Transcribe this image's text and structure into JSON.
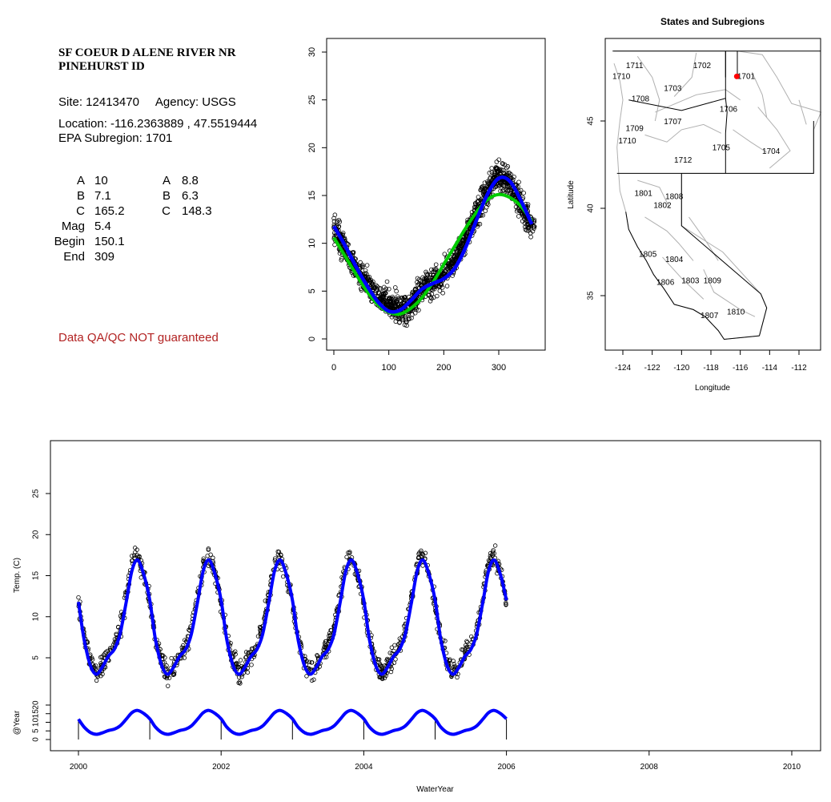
{
  "station": {
    "name_line1": "SF COEUR D ALENE RIVER NR",
    "name_line2": "PINEHURST ID",
    "site_line": "Site: 12413470     Agency: USGS",
    "location_line": "Location: -116.2363889 , 47.5519444",
    "subregion_line": "EPA Subregion: 1701",
    "qa_note": "Data QA/QC NOT guaranteed"
  },
  "params_left": [
    {
      "label": "A",
      "value": "10"
    },
    {
      "label": "B",
      "value": "7.1"
    },
    {
      "label": "C",
      "value": "165.2"
    },
    {
      "label": "Mag",
      "value": "5.4"
    },
    {
      "label": "Begin",
      "value": "150.1"
    },
    {
      "label": "End",
      "value": "309"
    }
  ],
  "params_right": [
    {
      "label": "A",
      "value": "8.8"
    },
    {
      "label": "B",
      "value": "6.3"
    },
    {
      "label": "C",
      "value": "148.3"
    }
  ],
  "chart_data": [
    {
      "type": "scatter",
      "title": "",
      "xlabel": "",
      "ylabel": "",
      "xlim": [
        0,
        365
      ],
      "ylim": [
        0,
        30
      ],
      "x_ticks": [
        0,
        100,
        200,
        300
      ],
      "y_ticks": [
        0,
        5,
        10,
        15,
        20,
        25,
        30
      ],
      "series": [
        {
          "kind": "points",
          "color": "#000000",
          "x": [
            0,
            15,
            30,
            45,
            60,
            75,
            90,
            105,
            120,
            135,
            150,
            165,
            180,
            195,
            210,
            225,
            240,
            255,
            270,
            285,
            300,
            315,
            330,
            345,
            360
          ],
          "y": [
            11.5,
            10,
            8.5,
            7,
            5.8,
            4.8,
            4,
            3.5,
            3,
            3.3,
            4.2,
            5.5,
            6,
            6.5,
            7.5,
            8.8,
            10.5,
            12.5,
            14.5,
            16.3,
            17,
            16.5,
            15.3,
            13.5,
            11.5
          ]
        },
        {
          "kind": "line",
          "color": "#0000ff",
          "x": [
            0,
            20,
            40,
            60,
            80,
            100,
            120,
            140,
            160,
            180,
            200,
            220,
            240,
            260,
            280,
            300,
            320,
            340,
            360
          ],
          "y": [
            11.8,
            9.8,
            7.6,
            5.6,
            3.9,
            2.9,
            3.0,
            4.0,
            5.2,
            5.8,
            6.3,
            7.4,
            9.6,
            12.5,
            15.2,
            16.8,
            16.5,
            14.5,
            12.0
          ]
        },
        {
          "kind": "line",
          "color": "#00cc00",
          "x": [
            0,
            20,
            40,
            60,
            80,
            100,
            120,
            140,
            160,
            180,
            200,
            220,
            240,
            260,
            280,
            300,
            320,
            340,
            360
          ],
          "y": [
            10.6,
            8.7,
            6.8,
            5.0,
            3.6,
            2.8,
            2.6,
            3.2,
            4.3,
            5.9,
            7.8,
            9.7,
            11.6,
            13.3,
            14.6,
            15.1,
            14.8,
            13.9,
            12.3
          ]
        }
      ]
    },
    {
      "type": "map",
      "title": "States and Subregions",
      "xlabel": "Longitude",
      "ylabel": "Latitude",
      "xlim": [
        -125.5,
        -110.5
      ],
      "ylim": [
        32,
        49.5
      ],
      "x_ticks": [
        -124,
        -122,
        -120,
        -118,
        -116,
        -114,
        -112
      ],
      "y_ticks": [
        35,
        40,
        45
      ],
      "site_marker": {
        "lon": -116.2363889,
        "lat": 47.5519444,
        "color": "#ff0000"
      },
      "subregions": [
        {
          "code": "1711",
          "lon": -123.2,
          "lat": 48.2
        },
        {
          "code": "1702",
          "lon": -118.6,
          "lat": 48.2
        },
        {
          "code": "1710",
          "lon": -124.1,
          "lat": 47.6
        },
        {
          "code": "1701",
          "lon": -115.6,
          "lat": 47.6
        },
        {
          "code": "1703",
          "lon": -120.6,
          "lat": 46.9
        },
        {
          "code": "1708",
          "lon": -122.8,
          "lat": 46.3
        },
        {
          "code": "1706",
          "lon": -116.8,
          "lat": 45.7
        },
        {
          "code": "1707",
          "lon": -120.6,
          "lat": 45.0
        },
        {
          "code": "1709",
          "lon": -123.2,
          "lat": 44.6
        },
        {
          "code": "1710",
          "lon": -123.7,
          "lat": 43.9
        },
        {
          "code": "1705",
          "lon": -117.3,
          "lat": 43.5
        },
        {
          "code": "1704",
          "lon": -113.9,
          "lat": 43.3
        },
        {
          "code": "1712",
          "lon": -119.9,
          "lat": 42.8
        },
        {
          "code": "1801",
          "lon": -122.6,
          "lat": 40.9
        },
        {
          "code": "1808",
          "lon": -120.5,
          "lat": 40.7
        },
        {
          "code": "1802",
          "lon": -121.3,
          "lat": 40.2
        },
        {
          "code": "1805",
          "lon": -122.3,
          "lat": 37.4
        },
        {
          "code": "1804",
          "lon": -120.5,
          "lat": 37.1
        },
        {
          "code": "1809",
          "lon": -117.9,
          "lat": 35.9
        },
        {
          "code": "1806",
          "lon": -121.1,
          "lat": 35.8
        },
        {
          "code": "1803",
          "lon": -119.4,
          "lat": 35.9
        },
        {
          "code": "1810",
          "lon": -116.3,
          "lat": 34.1
        },
        {
          "code": "1807",
          "lon": -118.1,
          "lat": 33.9
        }
      ]
    },
    {
      "type": "scatter",
      "title": "",
      "xlabel": "WaterYear",
      "ylabel": "Temp. (C)",
      "ylabel_lower": "@Year",
      "xlim": [
        1999.6,
        2010.4
      ],
      "ylim": [
        0,
        30
      ],
      "x_ticks": [
        2000,
        2002,
        2004,
        2006,
        2008,
        2010
      ],
      "y_ticks": [
        5,
        10,
        15,
        20,
        25
      ],
      "lower_ylim": [
        0,
        20
      ],
      "lower_y_ticks": [
        0,
        5,
        10,
        15,
        20
      ],
      "year_markers": [
        2000,
        2001,
        2002,
        2003,
        2004,
        2005,
        2006
      ],
      "series": [
        {
          "kind": "points",
          "color": "#000000",
          "cycle_years": [
            2000,
            2001,
            2002,
            2003,
            2004,
            2005
          ],
          "cycle_x": [
            0.0,
            0.08,
            0.17,
            0.25,
            0.33,
            0.42,
            0.5,
            0.58,
            0.67,
            0.75,
            0.83,
            0.92,
            1.0
          ],
          "cycle_y": [
            11.5,
            7.5,
            4.5,
            3.2,
            3.8,
            5.5,
            6.5,
            8.5,
            12.5,
            16.5,
            17.5,
            15.0,
            12.0
          ]
        },
        {
          "kind": "line",
          "color": "#0000ff",
          "cycle_x": [
            0.0,
            0.08,
            0.17,
            0.25,
            0.33,
            0.42,
            0.5,
            0.58,
            0.67,
            0.75,
            0.83,
            0.92,
            1.0
          ],
          "cycle_y": [
            11.8,
            7.2,
            4.0,
            3.0,
            3.8,
            5.2,
            6.0,
            7.8,
            11.8,
            15.6,
            16.9,
            15.0,
            12.0
          ]
        }
      ]
    }
  ]
}
